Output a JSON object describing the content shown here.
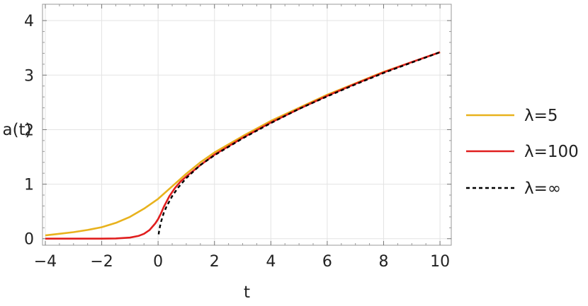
{
  "chart_data": {
    "type": "line",
    "title": "",
    "xlabel": "t",
    "ylabel": "a(t)",
    "xlim": [
      -4.1,
      10.4
    ],
    "ylim": [
      -0.12,
      4.3
    ],
    "xticks": [
      -4,
      -2,
      0,
      2,
      4,
      6,
      8,
      10
    ],
    "xtick_labels": [
      "−4",
      "−2",
      "0",
      "2",
      "4",
      "6",
      "8",
      "10"
    ],
    "yticks": [
      0,
      1,
      2,
      3,
      4
    ],
    "ytick_labels": [
      "0",
      "1",
      "2",
      "3",
      "4"
    ],
    "grid": true,
    "legend_position": "right",
    "series": [
      {
        "name": "λ=5",
        "color": "#E8B21D",
        "dash": "solid",
        "x": [
          -4,
          -3.5,
          -3,
          -2.5,
          -2,
          -1.5,
          -1,
          -0.5,
          0,
          0.5,
          1,
          1.5,
          2,
          3,
          4,
          5,
          6,
          7,
          8,
          9,
          10
        ],
        "y": [
          0.06,
          0.09,
          0.12,
          0.16,
          0.21,
          0.29,
          0.4,
          0.55,
          0.73,
          0.96,
          1.19,
          1.4,
          1.58,
          1.88,
          2.16,
          2.4,
          2.64,
          2.85,
          3.06,
          3.24,
          3.42
        ]
      },
      {
        "name": "λ=100",
        "color": "#E01E1E",
        "dash": "solid",
        "x": [
          -4,
          -3,
          -2,
          -1.5,
          -1,
          -0.7,
          -0.5,
          -0.3,
          -0.1,
          0,
          0.1,
          0.2,
          0.4,
          0.6,
          0.8,
          1,
          1.5,
          2,
          3,
          4,
          5,
          6,
          7,
          8,
          9,
          10
        ],
        "y": [
          0.0,
          0.0,
          0.0,
          0.005,
          0.02,
          0.05,
          0.09,
          0.16,
          0.28,
          0.36,
          0.46,
          0.58,
          0.78,
          0.93,
          1.05,
          1.14,
          1.35,
          1.54,
          1.85,
          2.13,
          2.38,
          2.62,
          2.84,
          3.05,
          3.24,
          3.42
        ]
      },
      {
        "name": "λ=∞",
        "color": "#000000",
        "dash": "dashed",
        "x": [
          0.02,
          0.05,
          0.1,
          0.2,
          0.3,
          0.5,
          0.7,
          1,
          1.5,
          2,
          3,
          4,
          5,
          6,
          7,
          8,
          9,
          10
        ],
        "y": [
          0.08,
          0.18,
          0.3,
          0.47,
          0.59,
          0.78,
          0.93,
          1.11,
          1.35,
          1.53,
          1.84,
          2.12,
          2.38,
          2.61,
          2.83,
          3.04,
          3.23,
          3.42
        ]
      }
    ]
  }
}
